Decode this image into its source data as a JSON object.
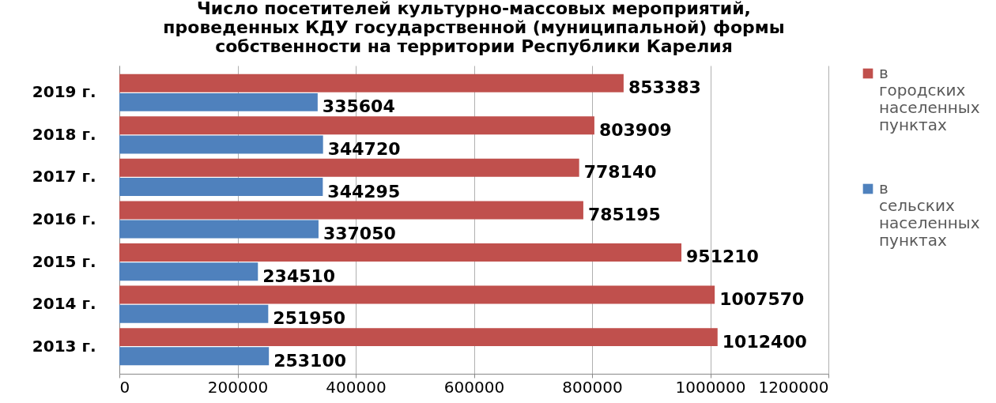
{
  "chart_data": {
    "type": "bar",
    "orientation": "horizontal",
    "title": "Число посетителей культурно-массовых мероприятий,\nпроведенных КДУ государственной (муниципальной) формы\nсобственности на территории Республики Карелия",
    "categories": [
      "2019 г.",
      "2018 г.",
      "2017 г.",
      "2016 г.",
      "2015 г.",
      "2014 г.",
      "2013 г."
    ],
    "series": [
      {
        "name": "в городских населенных пунктах",
        "color": "#c0504d",
        "values": [
          853383,
          803909,
          778140,
          785195,
          951210,
          1007570,
          1012400
        ]
      },
      {
        "name": "в сельских населенных пунктах",
        "color": "#4f81bd",
        "values": [
          335604,
          344720,
          344295,
          337050,
          234510,
          251950,
          253100
        ]
      }
    ],
    "xlim": [
      0,
      1200000
    ],
    "xticks": [
      0,
      200000,
      400000,
      600000,
      800000,
      1000000,
      1200000
    ],
    "data_labels": true,
    "grid": "x",
    "legend": "right"
  }
}
